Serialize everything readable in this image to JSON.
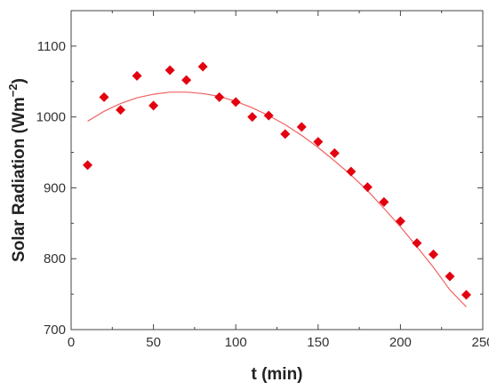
{
  "chart_data": {
    "type": "scatter",
    "title": "",
    "xlabel": "t (min)",
    "ylabel_main": "Solar Radiation (Wm",
    "ylabel_sup": "−2",
    "ylabel_close": ")",
    "xlim": [
      0,
      250
    ],
    "ylim": [
      700,
      1150
    ],
    "xticks": [
      0,
      50,
      100,
      150,
      200,
      250
    ],
    "yticks": [
      700,
      800,
      900,
      1000,
      1100
    ],
    "grid": false,
    "legend": "none",
    "series": [
      {
        "marker": "diamond",
        "color": "#e3000f",
        "x": [
          10,
          20,
          30,
          40,
          50,
          60,
          70,
          80,
          90,
          100,
          110,
          120,
          130,
          140,
          150,
          160,
          170,
          180,
          190,
          200,
          210,
          220,
          230,
          240
        ],
        "y": [
          932,
          1028,
          1010,
          1058,
          1016,
          1066,
          1052,
          1071,
          1028,
          1021,
          1000,
          1002,
          976,
          986,
          965,
          949,
          923,
          901,
          880,
          853,
          822,
          806,
          775,
          749
        ]
      }
    ],
    "fit": {
      "type": "line",
      "color": "#f26060",
      "x": [
        10,
        20,
        30,
        40,
        50,
        60,
        70,
        80,
        90,
        100,
        110,
        120,
        130,
        140,
        150,
        160,
        170,
        180,
        190,
        200,
        210,
        220,
        230,
        240
      ],
      "y": [
        994,
        1008,
        1019,
        1027,
        1032,
        1035,
        1035,
        1033,
        1029,
        1022,
        1013,
        1002,
        989,
        974,
        957,
        938,
        918,
        896,
        871,
        845,
        817,
        788,
        756,
        732
      ]
    }
  }
}
